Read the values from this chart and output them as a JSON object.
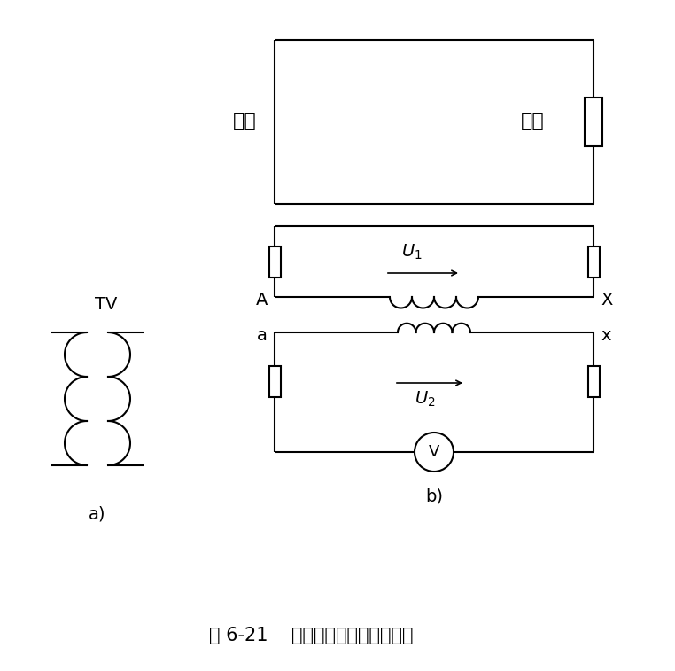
{
  "bg_color": "#ffffff",
  "line_color": "#000000",
  "lw": 1.5,
  "title": "图 6-21    电压互感器符号与接线图",
  "label_a_diag": "a)",
  "label_b_diag": "b)",
  "TV_label": "TV",
  "label_A": "A",
  "label_X": "X",
  "label_a_node": "a",
  "label_x_node": "x",
  "label_U1": "$U_1$",
  "label_U2": "$U_2$",
  "label_source": "电源",
  "label_load": "负载",
  "label_V": "V",
  "fig_width": 7.62,
  "fig_height": 7.57,
  "dpi": 100
}
